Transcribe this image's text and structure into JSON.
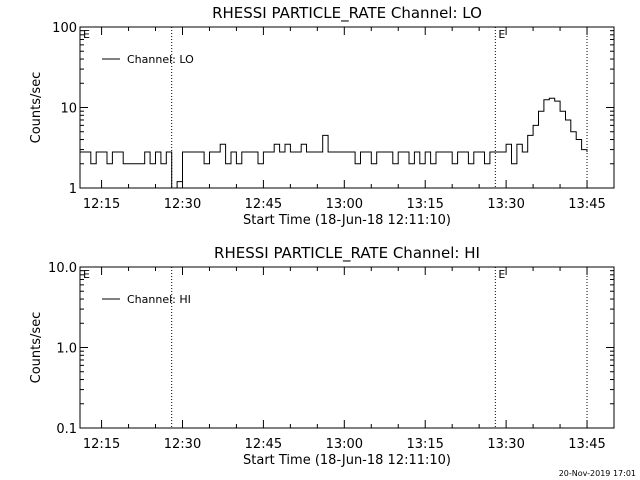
{
  "chart_data": [
    {
      "type": "line",
      "title": "RHESSI PARTICLE_RATE Channel: LO",
      "xlabel": "Start Time (18-Jun-18 12:11:10)",
      "ylabel": "Counts/sec",
      "yscale": "log",
      "ylim": [
        1,
        100
      ],
      "ytick_labels": [
        "1",
        "10",
        "100"
      ],
      "xlim": [
        "12:11",
        "13:50"
      ],
      "xtick_labels": [
        "12:15",
        "12:30",
        "12:45",
        "13:00",
        "13:15",
        "13:30",
        "13:45"
      ],
      "legend": "top-left",
      "eclipse_markers": [
        {
          "time": "12:11",
          "label": "E"
        },
        {
          "time": "13:28",
          "label": "E"
        }
      ],
      "dotted_lines": [
        "12:28",
        "13:28",
        "13:45"
      ],
      "series": [
        {
          "name": "Channel: LO",
          "color": "#000000",
          "x": [
            "12:11",
            "12:13",
            "12:14",
            "12:16",
            "12:17",
            "12:19",
            "12:20",
            "12:22",
            "12:23",
            "12:24",
            "12:25",
            "12:26",
            "12:27",
            "12:28",
            "12:29",
            "12:30",
            "12:31",
            "12:32",
            "12:33",
            "12:34",
            "12:35",
            "12:36",
            "12:37",
            "12:38",
            "12:39",
            "12:40",
            "12:41",
            "12:42",
            "12:43",
            "12:44",
            "12:45",
            "12:46",
            "12:47",
            "12:48",
            "12:49",
            "12:50",
            "12:51",
            "12:52",
            "12:53",
            "12:54",
            "12:55",
            "12:56",
            "12:57",
            "12:58",
            "12:59",
            "13:00",
            "13:01",
            "13:02",
            "13:03",
            "13:04",
            "13:05",
            "13:06",
            "13:07",
            "13:08",
            "13:09",
            "13:10",
            "13:11",
            "13:12",
            "13:13",
            "13:14",
            "13:15",
            "13:16",
            "13:17",
            "13:18",
            "13:19",
            "13:20",
            "13:21",
            "13:22",
            "13:23",
            "13:24",
            "13:25",
            "13:26",
            "13:27",
            "13:28",
            "13:29",
            "13:30",
            "13:31",
            "13:32",
            "13:33",
            "13:34",
            "13:35",
            "13:36",
            "13:37",
            "13:38",
            "13:39",
            "13:40",
            "13:41",
            "13:42",
            "13:43",
            "13:44",
            "13:45"
          ],
          "y": [
            2.8,
            2.0,
            2.8,
            2.0,
            2.8,
            2.0,
            2.0,
            2.0,
            2.8,
            2.0,
            2.8,
            2.0,
            2.8,
            0.8,
            1.2,
            2.8,
            2.8,
            2.8,
            2.8,
            2.0,
            2.8,
            2.8,
            3.5,
            2.0,
            2.8,
            2.0,
            2.8,
            2.8,
            2.8,
            2.0,
            2.8,
            2.8,
            3.5,
            2.8,
            3.5,
            2.8,
            2.8,
            3.5,
            2.8,
            2.8,
            2.8,
            4.5,
            2.8,
            2.8,
            2.8,
            2.8,
            2.8,
            2.0,
            2.8,
            2.8,
            2.0,
            2.8,
            2.8,
            2.8,
            2.0,
            2.8,
            2.8,
            2.0,
            2.8,
            2.0,
            2.8,
            2.0,
            2.8,
            2.8,
            2.8,
            2.0,
            2.8,
            2.8,
            2.0,
            2.8,
            2.8,
            2.0,
            2.8,
            2.8,
            2.8,
            3.5,
            2.0,
            3.5,
            2.8,
            4.5,
            6.0,
            9.0,
            12.5,
            13.0,
            12.0,
            9.0,
            7.0,
            5.0,
            4.0,
            3.0,
            2.8
          ]
        }
      ]
    },
    {
      "type": "line",
      "title": "RHESSI PARTICLE_RATE Channel: HI",
      "xlabel": "Start Time (18-Jun-18 12:11:10)",
      "ylabel": "Counts/sec",
      "yscale": "log",
      "ylim": [
        0.1,
        10
      ],
      "ytick_labels": [
        "0.1",
        "1.0",
        "10.0"
      ],
      "xlim": [
        "12:11",
        "13:50"
      ],
      "xtick_labels": [
        "12:15",
        "12:30",
        "12:45",
        "13:00",
        "13:15",
        "13:30",
        "13:45"
      ],
      "legend": "top-left",
      "eclipse_markers": [
        {
          "time": "12:11",
          "label": "E"
        },
        {
          "time": "13:28",
          "label": "E"
        }
      ],
      "dotted_lines": [
        "12:28",
        "13:28",
        "13:45"
      ],
      "series": [
        {
          "name": "Channel: HI",
          "color": "#000000",
          "x": [],
          "y": []
        }
      ]
    }
  ],
  "footer": {
    "timestamp": "20-Nov-2019 17:01"
  }
}
